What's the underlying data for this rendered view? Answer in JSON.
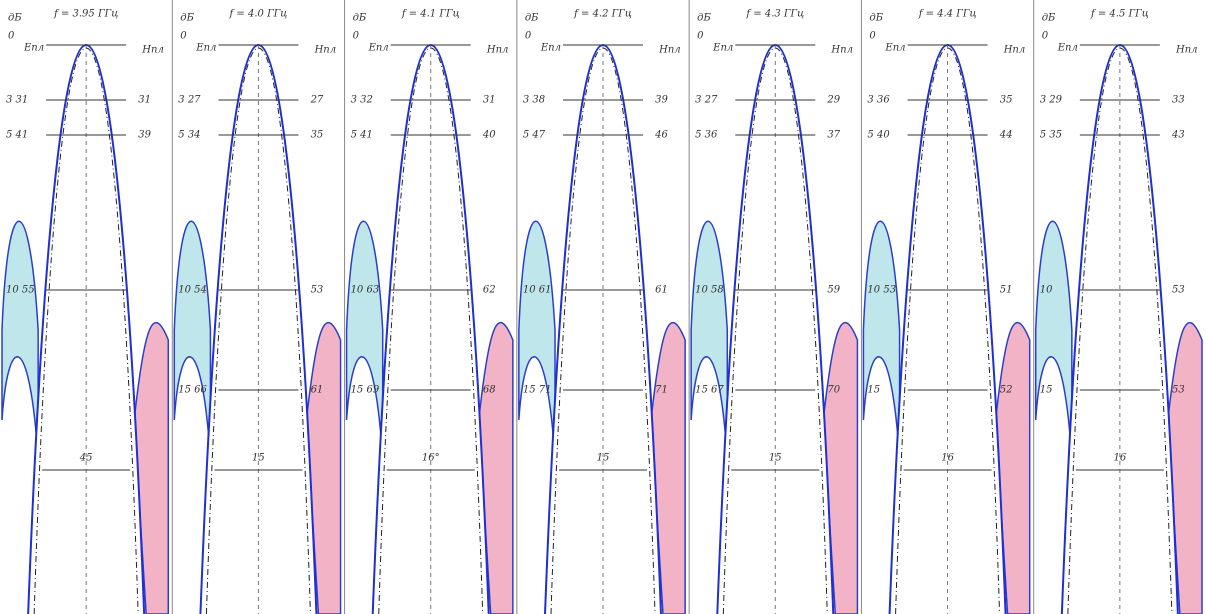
{
  "panels": [
    {
      "freq": "f = 3.95 ГГц",
      "unit": "дБ",
      "zero": "0",
      "e_label": "Eпл",
      "h_label": "Hпл",
      "left": [
        "3 31",
        "5 41",
        "10 55"
      ],
      "right": [
        "31",
        "39"
      ],
      "width": "45"
    },
    {
      "freq": "f = 4.0 ГГц",
      "unit": "дБ",
      "zero": "0",
      "e_label": "Eпл",
      "h_label": "Hпл",
      "left": [
        "3 27",
        "5 34",
        "10 54",
        "15 66"
      ],
      "right": [
        "27",
        "35",
        "53",
        "61"
      ],
      "width": "15"
    },
    {
      "freq": "f = 4.1 ГГц",
      "unit": "дБ",
      "zero": "0",
      "e_label": "Eпл",
      "h_label": "Hпл",
      "left": [
        "3 32",
        "5 41",
        "10 63",
        "15 69"
      ],
      "right": [
        "31",
        "40",
        "62",
        "68"
      ],
      "width": "16°"
    },
    {
      "freq": "f = 4.2 ГГц",
      "unit": "дБ",
      "zero": "0",
      "e_label": "Eпл",
      "h_label": "Hпл",
      "left": [
        "3 38",
        "5 47",
        "10 61",
        "15 71"
      ],
      "right": [
        "39",
        "46",
        "61",
        "71"
      ],
      "width": "15"
    },
    {
      "freq": "f = 4.3 ГГц",
      "unit": "дБ",
      "zero": "0",
      "e_label": "Eпл",
      "h_label": "Hпл",
      "left": [
        "3 27",
        "5 36",
        "10 58",
        "15 67"
      ],
      "right": [
        "29",
        "37",
        "59",
        "70"
      ],
      "width": "15"
    },
    {
      "freq": "f = 4.4 ГГц",
      "unit": "дБ",
      "zero": "0",
      "e_label": "Eпл",
      "h_label": "Hпл",
      "left": [
        "3 36",
        "5 40",
        "10 53",
        "15"
      ],
      "right": [
        "35",
        "44",
        "51",
        "52"
      ],
      "width": "16"
    },
    {
      "freq": "f = 4.5 ГГц",
      "unit": "дБ",
      "zero": "0",
      "e_label": "Eпл",
      "h_label": "Hпл",
      "left": [
        "3 29",
        "5 35",
        "10",
        "15"
      ],
      "right": [
        "33",
        "43",
        "53",
        "53"
      ],
      "width": "16"
    }
  ]
}
